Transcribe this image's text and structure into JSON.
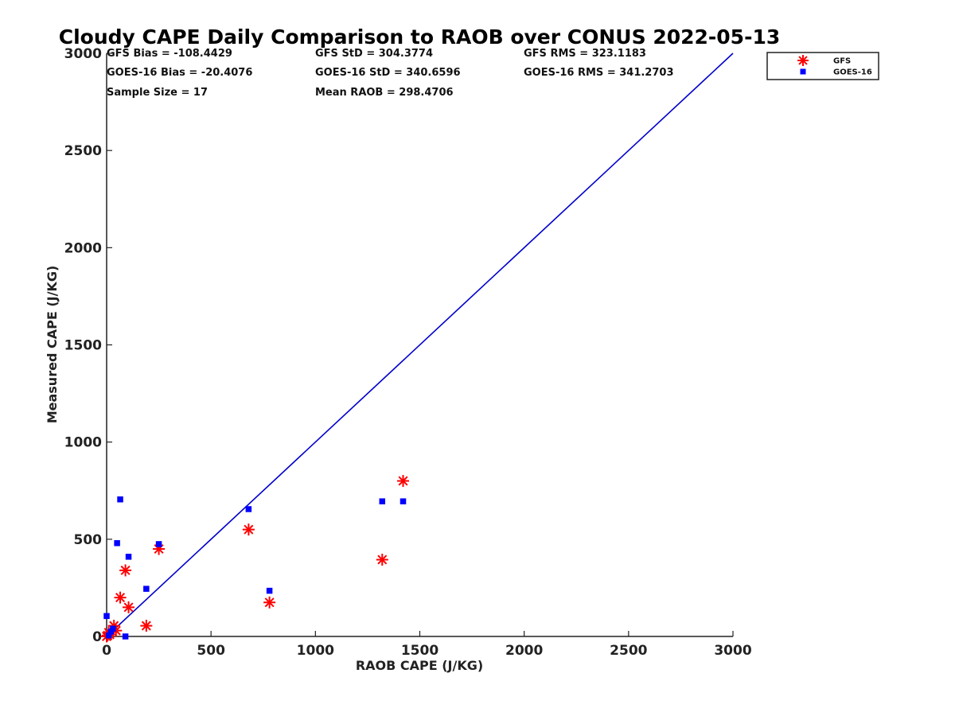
{
  "chart_data": {
    "type": "scatter",
    "title": "Cloudy CAPE Daily Comparison to RAOB over CONUS 2022-05-13",
    "xlabel": "RAOB CAPE (J/KG)",
    "ylabel": "Measured CAPE (J/KG)",
    "xlim": [
      0,
      3000
    ],
    "ylim": [
      0,
      3000
    ],
    "xticks": [
      0,
      500,
      1000,
      1500,
      2000,
      2500,
      3000
    ],
    "yticks": [
      0,
      500,
      1000,
      1500,
      2000,
      2500,
      3000
    ],
    "grid": false,
    "legend_position": "outside-top-right",
    "stats": [
      [
        "GFS Bias = -108.4429",
        "GFS StD = 304.3774",
        "GFS RMS = 323.1183"
      ],
      [
        "GOES-16 Bias = -20.4076",
        "GOES-16 StD = 340.6596",
        "GOES-16 RMS = 341.2703"
      ],
      [
        "Sample Size = 17",
        "Mean RAOB = 298.4706",
        ""
      ]
    ],
    "reference_line": {
      "x": [
        0,
        3000
      ],
      "y": [
        0,
        3000
      ],
      "color": "#0000cc"
    },
    "series": [
      {
        "name": "GFS",
        "marker": "asterisk",
        "color": "#ff0000",
        "points": [
          [
            0,
            0
          ],
          [
            5,
            5
          ],
          [
            10,
            20
          ],
          [
            15,
            10
          ],
          [
            35,
            55
          ],
          [
            45,
            30
          ],
          [
            65,
            200
          ],
          [
            90,
            340
          ],
          [
            105,
            150
          ],
          [
            190,
            55
          ],
          [
            250,
            450
          ],
          [
            680,
            550
          ],
          [
            780,
            175
          ],
          [
            1320,
            395
          ],
          [
            1420,
            800
          ]
        ]
      },
      {
        "name": "GOES-16",
        "marker": "square",
        "color": "#0000ff",
        "points": [
          [
            0,
            105
          ],
          [
            10,
            5
          ],
          [
            20,
            25
          ],
          [
            30,
            40
          ],
          [
            50,
            480
          ],
          [
            65,
            705
          ],
          [
            90,
            0
          ],
          [
            105,
            410
          ],
          [
            190,
            245
          ],
          [
            250,
            475
          ],
          [
            680,
            655
          ],
          [
            780,
            235
          ],
          [
            1320,
            695
          ],
          [
            1420,
            695
          ]
        ]
      }
    ]
  }
}
